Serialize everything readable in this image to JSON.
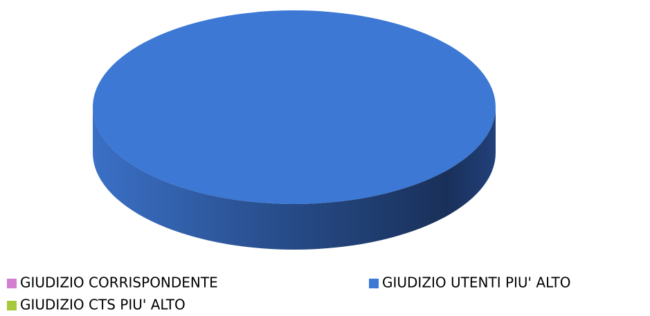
{
  "chart_data": {
    "type": "pie",
    "three_d": true,
    "categories": [
      "GIUDIZIO CORRISPONDENTE",
      "GIUDIZIO UTENTI PIU' ALTO",
      "GIUDIZIO CTS PIU' ALTO"
    ],
    "values": [
      0,
      100,
      0
    ],
    "colors": [
      "#d37fcf",
      "#3c78d4",
      "#a8c83c"
    ]
  }
}
